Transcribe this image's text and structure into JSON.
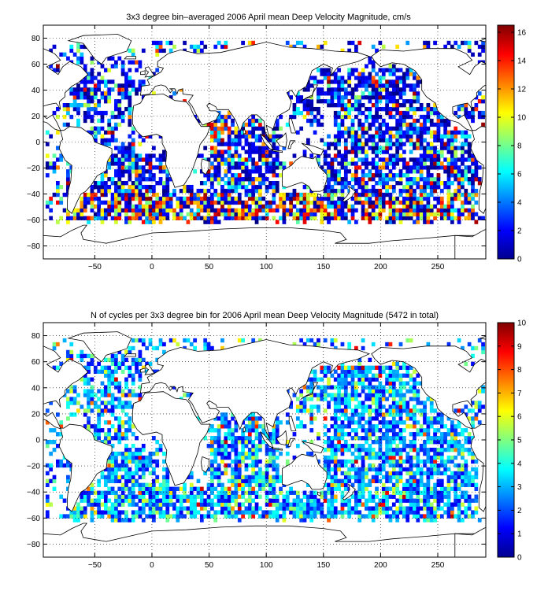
{
  "chart_data": [
    {
      "type": "heatmap",
      "title": "3x3 degree bin–averaged 2006 April mean Deep Velocity Magnitude, cm/s",
      "xlabel": "",
      "ylabel": "",
      "xlim": [
        -95,
        292
      ],
      "ylim": [
        -90,
        90
      ],
      "x_ticks": [
        -50,
        0,
        50,
        100,
        150,
        200,
        250
      ],
      "y_ticks": [
        80,
        60,
        40,
        20,
        0,
        -20,
        -40,
        -60,
        -80
      ],
      "colorbar": {
        "min": 0,
        "max": 16.5,
        "ticks": [
          0,
          2,
          4,
          6,
          8,
          10,
          12,
          14,
          16
        ],
        "colormap": "jet"
      },
      "grid": true,
      "bin_size_deg": 3,
      "value_distribution": {
        "typical": "0–4",
        "high_regions": [
          "Southern Ocean 40S–60S",
          "Arabian Sea / western equatorial Indian",
          "tropical Atlantic"
        ]
      }
    },
    {
      "type": "heatmap",
      "title": "N of cycles per 3x3 degree bin for 2006 April mean Deep Velocity Magnitude (5472 in total)",
      "xlabel": "",
      "ylabel": "",
      "xlim": [
        -95,
        292
      ],
      "ylim": [
        -90,
        90
      ],
      "x_ticks": [
        -50,
        0,
        50,
        100,
        150,
        200,
        250
      ],
      "y_ticks": [
        80,
        60,
        40,
        20,
        0,
        -20,
        -40,
        -60,
        -80
      ],
      "colorbar": {
        "min": 0,
        "max": 10,
        "ticks": [
          0,
          1,
          2,
          3,
          4,
          5,
          6,
          7,
          8,
          9,
          10
        ],
        "colormap": "jet"
      },
      "grid": true,
      "bin_size_deg": 3,
      "total_cycles": 5472
    }
  ],
  "colors": {
    "axes": "#000000",
    "background": "#ffffff",
    "grid": "#000000"
  }
}
